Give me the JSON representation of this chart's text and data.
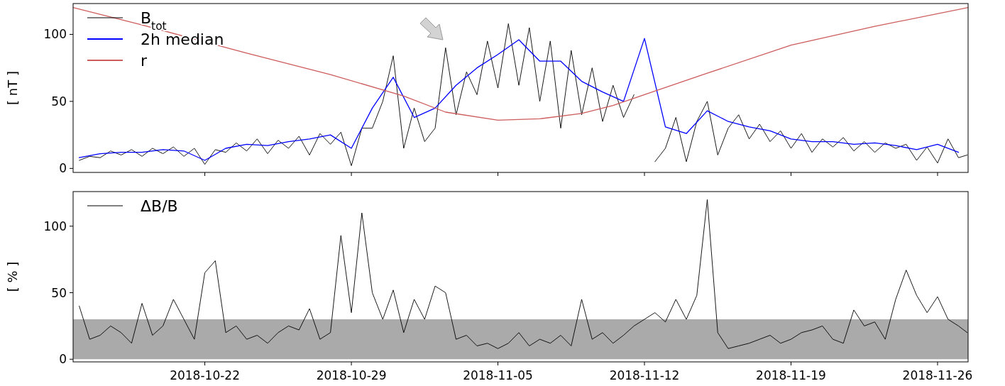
{
  "chart_data": [
    {
      "type": "line",
      "ylabel": "[ nT ]",
      "xlim": [
        "2018-10-15T17:00",
        "2018-11-27T11:00"
      ],
      "xticks": [
        "2018-10-22",
        "2018-10-29",
        "2018-11-05",
        "2018-11-12",
        "2018-11-19",
        "2018-11-26"
      ],
      "ylim": [
        -3,
        123
      ],
      "yticks": [
        0,
        50,
        100
      ],
      "tick_labels": "y",
      "legend": "top left",
      "x": [
        "2018-10-16T00:00",
        "2018-10-16T12:00",
        "2018-10-17T00:00",
        "2018-10-17T12:00",
        "2018-10-18T00:00",
        "2018-10-18T12:00",
        "2018-10-19T00:00",
        "2018-10-19T12:00",
        "2018-10-20T00:00",
        "2018-10-20T12:00",
        "2018-10-21T00:00",
        "2018-10-21T12:00",
        "2018-10-22T00:00",
        "2018-10-22T12:00",
        "2018-10-23T00:00",
        "2018-10-23T12:00",
        "2018-10-24T00:00",
        "2018-10-24T12:00",
        "2018-10-25T00:00",
        "2018-10-25T12:00",
        "2018-10-26T00:00",
        "2018-10-26T12:00",
        "2018-10-27T00:00",
        "2018-10-27T12:00",
        "2018-10-28T00:00",
        "2018-10-28T12:00",
        "2018-10-29T00:00",
        "2018-10-29T12:00",
        "2018-10-30T00:00",
        "2018-10-30T12:00",
        "2018-10-31T00:00",
        "2018-10-31T12:00",
        "2018-11-01T00:00",
        "2018-11-01T12:00",
        "2018-11-02T00:00",
        "2018-11-02T12:00",
        "2018-11-03T00:00",
        "2018-11-03T12:00",
        "2018-11-04T00:00",
        "2018-11-04T12:00",
        "2018-11-05T00:00",
        "2018-11-05T12:00",
        "2018-11-06T00:00",
        "2018-11-06T12:00",
        "2018-11-07T00:00",
        "2018-11-07T12:00",
        "2018-11-08T00:00",
        "2018-11-08T12:00",
        "2018-11-09T00:00",
        "2018-11-09T12:00",
        "2018-11-10T00:00",
        "2018-11-10T12:00",
        "2018-11-11T00:00",
        "2018-11-11T12:00",
        "2018-11-12T00:00",
        "2018-11-12T12:00",
        "2018-11-13T00:00",
        "2018-11-13T12:00",
        "2018-11-14T00:00",
        "2018-11-14T12:00",
        "2018-11-15T00:00",
        "2018-11-15T12:00",
        "2018-11-16T00:00",
        "2018-11-16T12:00",
        "2018-11-17T00:00",
        "2018-11-17T12:00",
        "2018-11-18T00:00",
        "2018-11-18T12:00",
        "2018-11-19T00:00",
        "2018-11-19T12:00",
        "2018-11-20T00:00",
        "2018-11-20T12:00",
        "2018-11-21T00:00",
        "2018-11-21T12:00",
        "2018-11-22T00:00",
        "2018-11-22T12:00",
        "2018-11-23T00:00",
        "2018-11-23T12:00",
        "2018-11-24T00:00",
        "2018-11-24T12:00",
        "2018-11-25T00:00",
        "2018-11-25T12:00",
        "2018-11-26T00:00",
        "2018-11-26T12:00",
        "2018-11-27T00:00",
        "2018-11-27T10:00"
      ],
      "series": [
        {
          "name": "B$_{tot}$",
          "color": "#000000",
          "values": [
            6,
            9,
            8,
            13,
            10,
            14,
            9,
            15,
            11,
            16,
            9,
            15,
            3,
            14,
            12,
            19,
            13,
            22,
            11,
            21,
            15,
            24,
            10,
            26,
            18,
            27,
            2,
            30,
            30,
            50,
            84,
            15,
            45,
            20,
            30,
            90,
            40,
            72,
            55,
            95,
            60,
            108,
            62,
            105,
            50,
            95,
            30,
            88,
            40,
            75,
            35,
            62,
            38,
            55,
            null,
            5,
            15,
            38,
            5,
            35,
            50,
            10,
            30,
            40,
            22,
            33,
            20,
            28,
            15,
            26,
            12,
            22,
            16,
            23,
            13,
            20,
            12,
            19,
            15,
            18,
            6,
            16,
            4,
            22,
            8,
            10
          ]
        },
        {
          "name": "2h median",
          "color": "#0000ff",
          "x": [
            "2018-10-16",
            "2018-10-17",
            "2018-10-18",
            "2018-10-19",
            "2018-10-20",
            "2018-10-21",
            "2018-10-22",
            "2018-10-23",
            "2018-10-24",
            "2018-10-25",
            "2018-10-26",
            "2018-10-27",
            "2018-10-28",
            "2018-10-29",
            "2018-10-30",
            "2018-10-31",
            "2018-11-01",
            "2018-11-02",
            "2018-11-03",
            "2018-11-04",
            "2018-11-05",
            "2018-11-06",
            "2018-11-07",
            "2018-11-08",
            "2018-11-09",
            "2018-11-10",
            "2018-11-11",
            "2018-11-12",
            "2018-11-13",
            "2018-11-14",
            "2018-11-15",
            "2018-11-16",
            "2018-11-17",
            "2018-11-18",
            "2018-11-19",
            "2018-11-20",
            "2018-11-21",
            "2018-11-22",
            "2018-11-23",
            "2018-11-24",
            "2018-11-25",
            "2018-11-26",
            "2018-11-27"
          ],
          "values": [
            8,
            11,
            12,
            12,
            14,
            13,
            6,
            15,
            18,
            17,
            20,
            22,
            25,
            15,
            45,
            68,
            38,
            45,
            62,
            75,
            85,
            96,
            80,
            80,
            65,
            57,
            50,
            97,
            31,
            26,
            43,
            35,
            31,
            28,
            22,
            20,
            20,
            18,
            19,
            17,
            14,
            18,
            12
          ]
        },
        {
          "name": "r",
          "color": "#cd5c5c",
          "x": [
            "2018-10-15T17:00",
            "2018-10-19",
            "2018-10-24",
            "2018-10-28",
            "2018-10-31T12:00",
            "2018-11-02T12:00",
            "2018-11-05",
            "2018-11-07",
            "2018-11-09",
            "2018-11-10T12:00",
            "2018-11-12",
            "2018-11-15",
            "2018-11-19",
            "2018-11-23",
            "2018-11-27T11:00"
          ],
          "values": [
            120,
            107,
            86,
            70,
            54,
            42,
            36,
            37,
            41,
            47,
            55,
            71,
            92,
            106,
            120
          ]
        }
      ]
    },
    {
      "type": "line",
      "ylabel": "[ % ]",
      "xlim": [
        "2018-10-15T17:00",
        "2018-11-27T11:00"
      ],
      "xticks": [
        "2018-10-22",
        "2018-10-29",
        "2018-11-05",
        "2018-11-12",
        "2018-11-19",
        "2018-11-26"
      ],
      "ylim": [
        -2,
        126
      ],
      "yticks": [
        0,
        50,
        100
      ],
      "legend": "top left",
      "bands": [
        {
          "axis": "y",
          "from": 0,
          "to": 30,
          "color": "#aaaaaa"
        }
      ],
      "x": [
        "2018-10-16T00:00",
        "2018-10-16T12:00",
        "2018-10-17T00:00",
        "2018-10-17T12:00",
        "2018-10-18T00:00",
        "2018-10-18T12:00",
        "2018-10-19T00:00",
        "2018-10-19T12:00",
        "2018-10-20T00:00",
        "2018-10-20T12:00",
        "2018-10-21T00:00",
        "2018-10-21T12:00",
        "2018-10-22T00:00",
        "2018-10-22T12:00",
        "2018-10-23T00:00",
        "2018-10-23T12:00",
        "2018-10-24T00:00",
        "2018-10-24T12:00",
        "2018-10-25T00:00",
        "2018-10-25T12:00",
        "2018-10-26T00:00",
        "2018-10-26T12:00",
        "2018-10-27T00:00",
        "2018-10-27T12:00",
        "2018-10-28T00:00",
        "2018-10-28T12:00",
        "2018-10-29T00:00",
        "2018-10-29T12:00",
        "2018-10-30T00:00",
        "2018-10-30T12:00",
        "2018-10-31T00:00",
        "2018-10-31T12:00",
        "2018-11-01T00:00",
        "2018-11-01T12:00",
        "2018-11-02T00:00",
        "2018-11-02T12:00",
        "2018-11-03T00:00",
        "2018-11-03T12:00",
        "2018-11-04T00:00",
        "2018-11-04T12:00",
        "2018-11-05T00:00",
        "2018-11-05T12:00",
        "2018-11-06T00:00",
        "2018-11-06T12:00",
        "2018-11-07T00:00",
        "2018-11-07T12:00",
        "2018-11-08T00:00",
        "2018-11-08T12:00",
        "2018-11-09T00:00",
        "2018-11-09T12:00",
        "2018-11-10T00:00",
        "2018-11-10T12:00",
        "2018-11-11T00:00",
        "2018-11-11T12:00",
        "2018-11-12T00:00",
        "2018-11-12T12:00",
        "2018-11-13T00:00",
        "2018-11-13T12:00",
        "2018-11-14T00:00",
        "2018-11-14T12:00",
        "2018-11-15T00:00",
        "2018-11-15T12:00",
        "2018-11-16T00:00",
        "2018-11-16T12:00",
        "2018-11-17T00:00",
        "2018-11-17T12:00",
        "2018-11-18T00:00",
        "2018-11-18T12:00",
        "2018-11-19T00:00",
        "2018-11-19T12:00",
        "2018-11-20T00:00",
        "2018-11-20T12:00",
        "2018-11-21T00:00",
        "2018-11-21T12:00",
        "2018-11-22T00:00",
        "2018-11-22T12:00",
        "2018-11-23T00:00",
        "2018-11-23T12:00",
        "2018-11-24T00:00",
        "2018-11-24T12:00",
        "2018-11-25T00:00",
        "2018-11-25T12:00",
        "2018-11-26T00:00",
        "2018-11-26T12:00",
        "2018-11-27T00:00",
        "2018-11-27T10:00"
      ],
      "series": [
        {
          "name": "ΔB/B",
          "color": "#000000",
          "values": [
            40,
            15,
            18,
            25,
            20,
            12,
            42,
            18,
            25,
            45,
            30,
            15,
            65,
            74,
            20,
            25,
            15,
            18,
            12,
            20,
            25,
            22,
            38,
            15,
            20,
            93,
            35,
            110,
            50,
            30,
            52,
            20,
            45,
            30,
            55,
            50,
            15,
            18,
            10,
            12,
            8,
            12,
            20,
            10,
            15,
            12,
            18,
            10,
            45,
            15,
            20,
            12,
            18,
            25,
            30,
            35,
            28,
            45,
            30,
            48,
            120,
            20,
            8,
            10,
            12,
            15,
            18,
            12,
            15,
            20,
            22,
            25,
            15,
            12,
            37,
            25,
            28,
            15,
            45,
            67,
            48,
            35,
            47,
            30,
            25,
            20
          ]
        }
      ]
    }
  ]
}
